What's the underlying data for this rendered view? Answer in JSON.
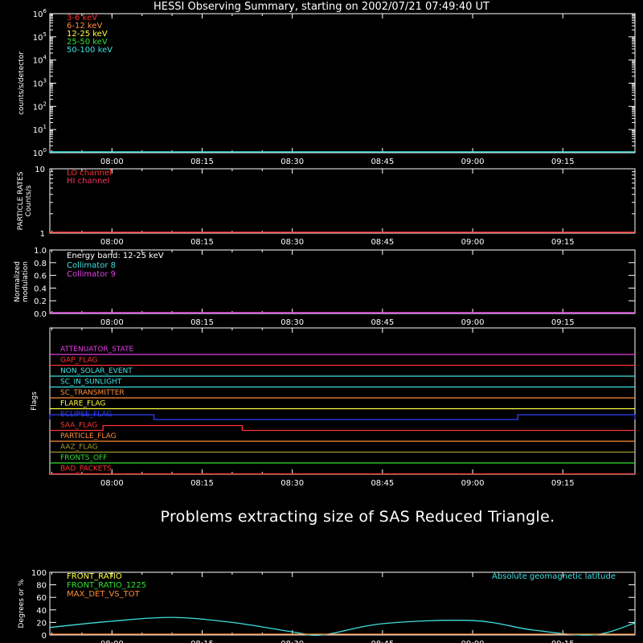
{
  "title": "HESSI Observing Summary, starting on 2002/07/21 07:49:40 UT",
  "message": "Problems extracting size of SAS Reduced Triangle.",
  "time_ticks": [
    "08:00",
    "08:15",
    "08:30",
    "08:45",
    "09:00",
    "09:15"
  ],
  "chart_data": [
    {
      "type": "line",
      "name": "count-rates",
      "ylabel": "counts/s/detector",
      "yscale": "log",
      "y_tick_labels": [
        "10^0",
        "10^1",
        "10^2",
        "10^3",
        "10^4",
        "10^5",
        "10^6"
      ],
      "series": [
        {
          "name": "3-6 keV",
          "color": "#ff3030"
        },
        {
          "name": "6-12 keV",
          "color": "#ff8c3a"
        },
        {
          "name": "12-25 keV",
          "color": "#ffff40"
        },
        {
          "name": "25-50 keV",
          "color": "#30e030"
        },
        {
          "name": "50-100 keV",
          "color": "#40e0e0"
        }
      ],
      "values_note": "flat at baseline"
    },
    {
      "type": "line",
      "name": "particle-rates",
      "ylabel_lines": [
        "PARTICLE RATES",
        "Counts/s"
      ],
      "yscale": "log",
      "y_tick_labels": [
        "1",
        "10"
      ],
      "series": [
        {
          "name": "LO channel",
          "color": "#ff3030"
        },
        {
          "name": "HI channel",
          "color": "#ff3060"
        }
      ]
    },
    {
      "type": "line",
      "name": "modulation",
      "ylabel_lines": [
        "Normalized",
        "modulation"
      ],
      "ylim": [
        0,
        1
      ],
      "y_tick_labels": [
        "0.0",
        "0.2",
        "0.4",
        "0.6",
        "0.8",
        "1.0"
      ],
      "annotation": "Energy band: 12-25 keV",
      "series": [
        {
          "name": "Collimator 8",
          "color": "#40e0e0"
        },
        {
          "name": "Collimator 9",
          "color": "#e040e0"
        }
      ]
    },
    {
      "type": "line",
      "name": "flags",
      "ylabel": "Flags",
      "flags": [
        {
          "name": "ATTENUATOR_STATE",
          "color": "#e040e0"
        },
        {
          "name": "GAP_FLAG",
          "color": "#ff3030"
        },
        {
          "name": "NON_SOLAR_EVENT",
          "color": "#40e0e0"
        },
        {
          "name": "SC_IN_SUNLIGHT",
          "color": "#40e0e0"
        },
        {
          "name": "SC_TRANSMITTER",
          "color": "#ff8c3a"
        },
        {
          "name": "FLARE_FLAG",
          "color": "#ffff40"
        },
        {
          "name": "ECLIPSE_FLAG",
          "color": "#3040ff",
          "on_intervals": [
            [
              "07:49:40",
              "08:07:00"
            ],
            [
              "09:07:30",
              "09:27:00"
            ]
          ]
        },
        {
          "name": "SAA_FLAG",
          "color": "#ff3030",
          "on_intervals": [
            [
              "07:58:30",
              "08:21:40"
            ]
          ]
        },
        {
          "name": "PARTICLE_FLAG",
          "color": "#ff8c3a"
        },
        {
          "name": "AAZ_FLAG",
          "color": "#9a9a30"
        },
        {
          "name": "FRONTS_OFF",
          "color": "#30e030"
        },
        {
          "name": "BAD_PACKETS",
          "color": "#ff3030"
        }
      ]
    },
    {
      "type": "line",
      "name": "ratios",
      "ylabel": "Degrees or %",
      "ylim": [
        0,
        100
      ],
      "y_tick_labels": [
        "0",
        "20",
        "40",
        "60",
        "80",
        "100"
      ],
      "series": [
        {
          "name": "FRONT_RATIO",
          "color": "#ffff40"
        },
        {
          "name": "FRONT_RATIO_1225",
          "color": "#30e030"
        },
        {
          "name": "MAX_DET_VS_TOT",
          "color": "#ff8c3a"
        },
        {
          "name": "Absolute geomagnetic latitude",
          "color": "#40e0e0",
          "x": [
            "07:49:40",
            "08:00",
            "08:10",
            "08:20",
            "08:30",
            "08:35",
            "08:45",
            "09:00",
            "09:10",
            "09:20",
            "09:27"
          ],
          "values": [
            12,
            22,
            28,
            20,
            5,
            0,
            18,
            23,
            8,
            0,
            19
          ]
        }
      ]
    }
  ]
}
